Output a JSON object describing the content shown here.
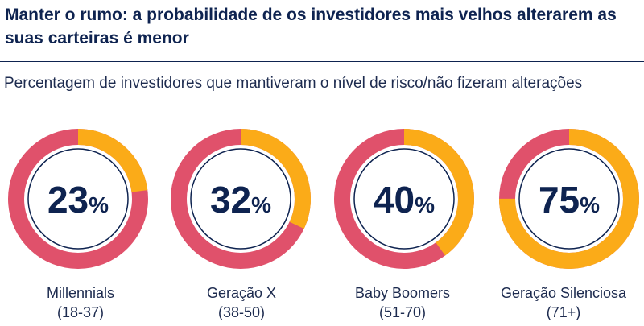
{
  "title": "Manter o rumo: a probabilidade de os investidores mais velhos alterarem as suas carteiras é menor",
  "subtitle": "Percentagem de investidores que mantiveram o nível de risco/não fizeram alterações",
  "colors": {
    "kept": "#fbab18",
    "changed": "#e0516b",
    "inner_ring": "#0e2350"
  },
  "chart_data": {
    "type": "pie",
    "title": "Manter o rumo: a probabilidade de os investidores mais velhos alterarem as suas carteiras é menor",
    "subtitle": "Percentagem de investidores que mantiveram o nível de risco/não fizeram alterações",
    "categories": [
      "Millennials",
      "Geração X",
      "Baby Boomers",
      "Geração Silenciosa"
    ],
    "ranges": [
      "(18-37)",
      "(38-50)",
      "(51-70)",
      "(71+)"
    ],
    "values": [
      23,
      32,
      40,
      75
    ],
    "unit": "%"
  }
}
